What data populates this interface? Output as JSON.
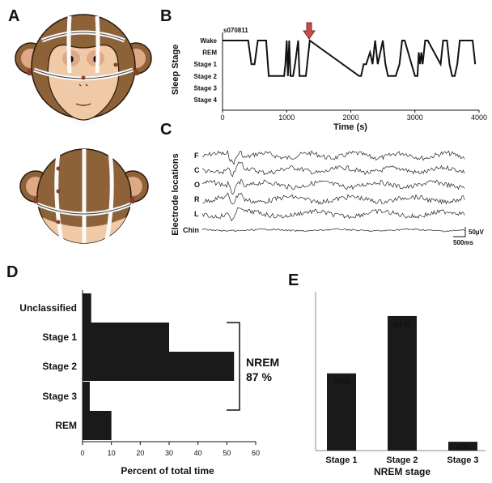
{
  "panels": {
    "a": "A",
    "b": "B",
    "c": "C",
    "d": "D",
    "e": "E"
  },
  "colors": {
    "fur": "#8d6239",
    "face": "#f0c9a7",
    "face_inner": "#dfa887",
    "arrow": "#c0504d",
    "bar": "#1a1a1a",
    "eeg": "#222222"
  },
  "chart_data": [
    {
      "id": "B",
      "type": "line",
      "annotation": "s070811",
      "ylabel": "Sleep Stage",
      "xlabel": "Time (s)",
      "y_categories": [
        "Wake",
        "REM",
        "Stage 1",
        "Stage 2",
        "Stage 3",
        "Stage 4"
      ],
      "xlim": [
        0,
        4000
      ],
      "xticks": [
        0,
        1000,
        2000,
        3000,
        4000
      ],
      "arrow_at": 1350,
      "x": [
        0,
        400,
        450,
        500,
        550,
        680,
        720,
        960,
        980,
        1000,
        1020,
        1040,
        1060,
        1100,
        1130,
        1180,
        1200,
        1300,
        1360,
        2130,
        2160,
        2200,
        2240,
        2300,
        2340,
        2380,
        2420,
        2460,
        2500,
        2540,
        2580,
        2700,
        2760,
        2800,
        2840,
        3000,
        3040,
        3060,
        3080,
        3100,
        3120,
        3160,
        3200,
        3400,
        3440,
        3500,
        3540,
        3580,
        3620,
        3660,
        3700,
        3900,
        3940
      ],
      "y": [
        "Wake",
        "Wake",
        "Stage 1",
        "Stage 1",
        "Wake",
        "Wake",
        "Stage 2",
        "Stage 2",
        "Stage 1",
        "Wake",
        "Stage 2",
        "Wake",
        "Stage 2",
        "Stage 2",
        "Stage 1",
        "Wake",
        "Stage 2",
        "Stage 2",
        "Wake",
        "Stage 2",
        "Stage 2",
        "Stage 1",
        "Stage 1",
        "REM",
        "Stage 1",
        "Wake",
        "Stage 1",
        "REM",
        "Wake",
        "Stage 1",
        "Stage 2",
        "Stage 2",
        "Stage 1",
        "Wake",
        "Wake",
        "Stage 2",
        "Stage 2",
        "REM",
        "Stage 1",
        "REM",
        "Stage 1",
        "Wake",
        "Wake",
        "Stage 1",
        "Wake",
        "Wake",
        "Stage 1",
        "Stage 2",
        "Stage 2",
        "Stage 1",
        "Wake",
        "Wake",
        "Stage 1"
      ]
    },
    {
      "id": "D",
      "type": "bar",
      "orientation": "horizontal",
      "xlabel": "Percent of total time",
      "categories": [
        "Unclassified",
        "Stage 1",
        "Stage 2",
        "Stage 3",
        "REM"
      ],
      "values": [
        3,
        30,
        52.5,
        2.5,
        10
      ],
      "xlim": [
        0,
        60
      ],
      "xticks": [
        0,
        10,
        20,
        30,
        40,
        50,
        60
      ],
      "bracket_label": "NREM",
      "bracket_value": "87 %"
    },
    {
      "id": "E",
      "type": "bar",
      "xlabel": "NREM stage",
      "categories": [
        "Stage 1",
        "Stage 2",
        "Stage 3"
      ],
      "values": [
        35,
        61,
        4
      ],
      "data_labels": [
        "35%",
        "61%",
        "4%"
      ],
      "ylim": [
        0,
        72
      ]
    }
  ],
  "eeg": {
    "ylabel": "Electrode locations",
    "channels": [
      "F",
      "C",
      "O",
      "R",
      "L",
      "Chin"
    ],
    "scale_amplitude": "50µV",
    "scale_time": "500ms"
  }
}
